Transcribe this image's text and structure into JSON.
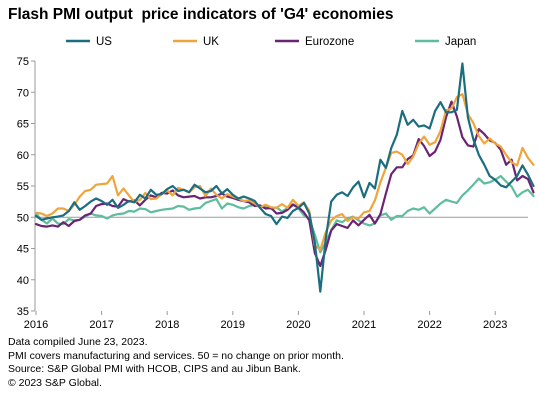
{
  "chart_data": {
    "type": "line",
    "title": "Flash PMI output  price indicators of 'G4' economies",
    "xlabel": "",
    "ylabel": "",
    "x_start": "2016-01",
    "x_ticks": [
      "2016",
      "2017",
      "2018",
      "2019",
      "2020",
      "2021",
      "2022",
      "2023"
    ],
    "ylim": [
      35,
      75
    ],
    "yticks": [
      35,
      40,
      45,
      50,
      55,
      60,
      65,
      70,
      75
    ],
    "reference_line": 50,
    "grid": false,
    "legend_position": "top",
    "series": [
      {
        "name": "US",
        "color": "#1b6e80",
        "values": [
          50.2,
          49.6,
          49.8,
          50.0,
          50.1,
          50.3,
          51.0,
          52.4,
          51.2,
          51.8,
          52.5,
          53.0,
          52.6,
          52.0,
          52.8,
          51.5,
          52.0,
          52.6,
          52.4,
          53.6,
          53.0,
          54.4,
          53.6,
          53.7,
          54.5,
          55.0,
          54.2,
          54.4,
          54.0,
          55.2,
          54.6,
          54.0,
          54.2,
          55.0,
          53.8,
          54.5,
          53.6,
          53.0,
          53.3,
          53.0,
          52.6,
          51.5,
          50.5,
          50.2,
          48.9,
          50.1,
          49.9,
          51.0,
          51.5,
          52.3,
          50.6,
          46.0,
          38.1,
          46.5,
          52.5,
          53.6,
          54.0,
          53.4,
          54.8,
          55.7,
          53.2,
          55.5,
          54.6,
          59.2,
          57.9,
          61.1,
          63.2,
          67.0,
          64.8,
          65.6,
          64.5,
          64.7,
          64.2,
          67.0,
          68.4,
          66.8,
          66.8,
          67.2,
          74.6,
          66.0,
          62.5,
          60.0,
          58.4,
          56.6,
          56.0,
          55.1,
          54.8,
          55.7,
          56.6,
          58.3,
          56.8,
          55.0
        ]
      },
      {
        "name": "UK",
        "color": "#efa53b",
        "values": [
          50.7,
          50.6,
          50.2,
          50.6,
          51.4,
          51.4,
          51.0,
          52.0,
          53.3,
          54.2,
          54.4,
          55.2,
          55.3,
          55.4,
          56.6,
          53.5,
          54.6,
          53.5,
          52.4,
          52.8,
          53.9,
          52.9,
          53.0,
          53.7,
          54.3,
          53.5,
          54.7,
          54.4,
          54.0,
          54.8,
          55.0,
          53.4,
          54.6,
          53.6,
          53.0,
          53.7,
          53.3,
          53.0,
          52.6,
          52.7,
          52.2,
          51.6,
          52.0,
          51.6,
          51.5,
          52.1,
          51.5,
          52.8,
          51.8,
          52.4,
          51.0,
          45.5,
          44.8,
          47.6,
          49.5,
          50.2,
          50.5,
          49.4,
          50.0,
          49.8,
          50.8,
          51.0,
          52.7,
          55.6,
          57.9,
          60.3,
          60.5,
          60.0,
          58.5,
          59.7,
          61.8,
          62.9,
          61.6,
          62.0,
          63.8,
          67.1,
          67.4,
          69.2,
          69.7,
          66.5,
          65.1,
          63.0,
          61.8,
          62.6,
          61.8,
          61.3,
          60.0,
          58.8,
          58.3,
          61.1,
          59.5,
          58.4
        ]
      },
      {
        "name": "Eurozone",
        "color": "#6b2474",
        "values": [
          48.9,
          48.6,
          48.5,
          48.7,
          48.5,
          49.2,
          48.6,
          49.4,
          49.6,
          50.3,
          50.6,
          51.8,
          52.1,
          52.2,
          51.8,
          51.7,
          52.9,
          52.5,
          52.7,
          51.9,
          52.8,
          53.5,
          53.2,
          53.9,
          53.8,
          54.3,
          53.5,
          53.2,
          53.3,
          53.4,
          53.0,
          53.2,
          53.2,
          53.4,
          53.8,
          53.3,
          53.1,
          52.8,
          52.6,
          52.4,
          51.8,
          51.9,
          51.4,
          51.5,
          50.6,
          50.7,
          51.2,
          52.0,
          51.6,
          50.8,
          49.5,
          44.3,
          42.2,
          44.8,
          47.9,
          48.9,
          48.6,
          48.3,
          49.5,
          48.7,
          49.6,
          50.4,
          49.0,
          50.5,
          53.8,
          56.9,
          58.0,
          58.0,
          59.3,
          59.9,
          62.5,
          61.4,
          59.8,
          60.5,
          62.4,
          66.0,
          68.5,
          66.1,
          62.8,
          61.5,
          61.3,
          64.1,
          63.3,
          62.3,
          61.9,
          60.8,
          58.4,
          59.2,
          55.9,
          56.6,
          56.1,
          54.0
        ]
      },
      {
        "name": "Japan",
        "color": "#5ebd9c",
        "values": [
          50.6,
          49.6,
          49.0,
          49.8,
          49.0,
          48.9,
          49.7,
          49.5,
          49.6,
          50.1,
          50.6,
          50.3,
          50.2,
          49.8,
          50.3,
          50.5,
          50.6,
          51.0,
          50.9,
          51.4,
          51.3,
          50.8,
          51.0,
          51.2,
          51.3,
          51.4,
          51.8,
          51.7,
          51.2,
          51.4,
          51.5,
          52.3,
          52.6,
          52.9,
          51.4,
          52.2,
          52.0,
          51.6,
          51.4,
          51.8,
          52.0,
          51.6,
          51.8,
          51.3,
          51.6,
          50.9,
          51.5,
          52.1,
          51.4,
          50.3,
          49.8,
          47.2,
          44.4,
          46.0,
          47.9,
          49.5,
          49.2,
          49.8,
          50.1,
          49.5,
          49.0,
          48.7,
          49.0,
          50.3,
          50.6,
          49.6,
          50.2,
          50.2,
          51.0,
          51.4,
          51.2,
          51.6,
          50.6,
          51.4,
          52.2,
          52.8,
          52.5,
          52.3,
          53.5,
          54.3,
          55.2,
          56.2,
          55.4,
          55.6,
          56.0,
          56.6,
          55.7,
          54.9,
          53.3,
          54.0,
          54.4,
          53.4
        ]
      }
    ]
  },
  "notes": [
    "Data compiled June 23, 2023.",
    "PMI covers manufacturing and services. 50 = no change on prior month.",
    "Source: S&P Global PMI with HCOB, CIPS and au Jibun Bank.",
    "© 2023 S&P Global."
  ]
}
